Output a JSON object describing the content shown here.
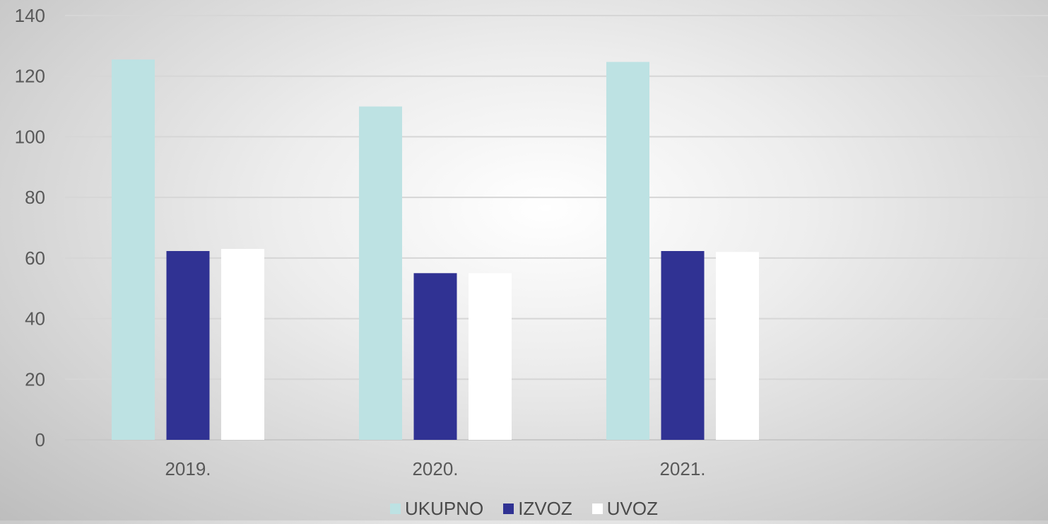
{
  "chart_data": {
    "type": "bar",
    "title": "",
    "xlabel": "",
    "ylabel": "",
    "categories": [
      "2019.",
      "2020.",
      "2021."
    ],
    "series": [
      {
        "name": "UKUPNO",
        "values": [
          125.5,
          110,
          124.7
        ],
        "color": "#bde2e3"
      },
      {
        "name": "IZVOZ",
        "values": [
          62.3,
          55,
          62.3
        ],
        "color": "#303293"
      },
      {
        "name": "UVOZ",
        "values": [
          63,
          55,
          62
        ],
        "color": "#ffffff"
      }
    ],
    "ylim": [
      0,
      140
    ],
    "yticks": [
      "0",
      "20",
      "40",
      "60",
      "80",
      "100",
      "120",
      "140"
    ],
    "grid": true,
    "legend": "bottom"
  }
}
